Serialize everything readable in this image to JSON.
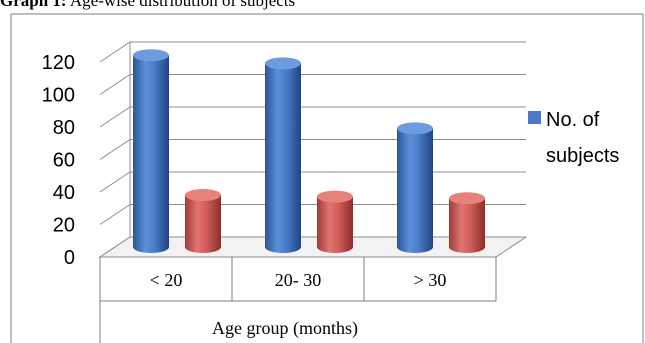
{
  "caption": {
    "prefix": "Graph 1:",
    "text": "Age-wise distribution of subjects"
  },
  "chart_data": {
    "type": "bar",
    "style": "3d-cylinder",
    "categories": [
      "< 20",
      "20- 30",
      "> 30"
    ],
    "series": [
      {
        "name": "No. of subjects",
        "values": [
          118,
          113,
          73
        ],
        "color": "#4472C4"
      },
      {
        "name": "",
        "values": [
          32,
          31,
          30
        ],
        "color": "#C0504D"
      }
    ],
    "xlabel": "Age group (months)",
    "ylabel": "",
    "ylim": [
      0,
      120
    ],
    "yticks": [
      0,
      20,
      40,
      60,
      80,
      100,
      120
    ],
    "grid": true,
    "legend": {
      "position": "right",
      "entries": [
        "No. of",
        "subjects"
      ]
    }
  }
}
